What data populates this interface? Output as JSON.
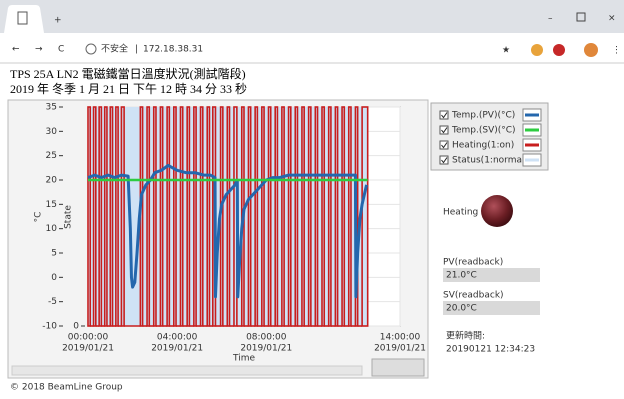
{
  "browser": {
    "security": "不安全",
    "url": "172.18.38.31"
  },
  "header": {
    "title": "TPS 25A LN2 電磁鐵當日溫度狀況(測試階段)",
    "timestamp": "2019 年 冬季 1 月 21 日 下午 12 時 34 分 33 秒"
  },
  "chart_data": {
    "type": "line",
    "xlabel": "Time",
    "ylabel": "°C",
    "y2label": "State",
    "xlim": [
      0,
      14
    ],
    "xticks": [
      {
        "value": 0,
        "label": "00:00:00",
        "date": "2019/01/21"
      },
      {
        "value": 4,
        "label": "04:00:00",
        "date": "2019/01/21"
      },
      {
        "value": 8,
        "label": "08:00:00",
        "date": "2019/01/21"
      },
      {
        "value": 14,
        "label": "14:00:00",
        "date": "2019/01/21"
      }
    ],
    "ylim": [
      -10,
      35
    ],
    "yticks": [
      -10,
      -5,
      0,
      5,
      10,
      15,
      20,
      25,
      30,
      35
    ],
    "y2lim": [
      0,
      1
    ],
    "y2ticks": [
      0
    ],
    "grid": true,
    "legend": "right",
    "series": [
      {
        "name": "Temp.(PV)(°C)",
        "color": "#2467ad",
        "x": [
          0,
          0.3,
          0.6,
          0.9,
          1.2,
          1.5,
          1.8,
          1.9,
          1.95,
          2.0,
          2.1,
          2.2,
          2.3,
          2.4,
          2.6,
          2.8,
          3.0,
          3.3,
          3.6,
          4.0,
          4.4,
          4.8,
          5.2,
          5.5,
          5.7,
          5.72,
          5.8,
          5.9,
          6.0,
          6.2,
          6.4,
          6.6,
          6.7,
          6.72,
          6.8,
          6.9,
          7.0,
          7.2,
          7.4,
          7.6,
          7.8,
          8.0,
          8.3,
          8.6,
          9.0,
          9.4,
          9.8,
          10.2,
          10.6,
          11.0,
          11.4,
          11.8,
          12.0,
          12.02,
          12.1,
          12.2,
          12.3,
          12.4,
          12.5
        ],
        "values": [
          20.5,
          21,
          20.5,
          21,
          20.5,
          21,
          20.8,
          10,
          0,
          -2,
          -1,
          5,
          12,
          17,
          19,
          20,
          21.5,
          22,
          23,
          22,
          21.5,
          21.5,
          21,
          21,
          20.5,
          -4,
          5,
          12,
          15,
          17,
          18,
          19,
          20,
          -4,
          3,
          10,
          14,
          16,
          17,
          18,
          19,
          20,
          20.5,
          20.5,
          21,
          21,
          21,
          21,
          21,
          21,
          21,
          21,
          21,
          -4,
          5,
          12,
          15,
          17,
          19
        ]
      },
      {
        "name": "Temp.(SV)(°C)",
        "color": "#2ecc40",
        "x": [
          0,
          12.55
        ],
        "values": [
          20,
          20
        ]
      },
      {
        "name": "Heating(1:on)",
        "color": "#c81e1e",
        "axis": "y2",
        "x": [
          0,
          0.1,
          0.25,
          0.35,
          0.5,
          0.6,
          0.75,
          0.85,
          1.0,
          1.1,
          1.25,
          1.35,
          1.5,
          1.62,
          2.35,
          2.45,
          2.65,
          2.75,
          2.95,
          3.05,
          3.25,
          3.35,
          3.55,
          3.65,
          3.85,
          3.95,
          4.15,
          4.25,
          4.45,
          4.55,
          4.75,
          4.85,
          5.05,
          5.15,
          5.35,
          5.45,
          5.6,
          5.72,
          5.95,
          6.05,
          6.25,
          6.35,
          6.55,
          6.68,
          6.9,
          7.0,
          7.2,
          7.3,
          7.5,
          7.6,
          7.8,
          7.9,
          8.1,
          8.2,
          8.4,
          8.5,
          8.7,
          8.8,
          9.0,
          9.1,
          9.3,
          9.4,
          9.6,
          9.7,
          9.9,
          10.0,
          10.2,
          10.3,
          10.5,
          10.6,
          10.8,
          10.9,
          11.1,
          11.2,
          11.4,
          11.5,
          11.7,
          11.8,
          12.0,
          12.1,
          12.3,
          12.55
        ],
        "values": [
          1,
          0,
          1,
          0,
          1,
          0,
          1,
          0,
          1,
          0,
          1,
          0,
          1,
          0,
          1,
          0,
          1,
          0,
          1,
          0,
          1,
          0,
          1,
          0,
          1,
          0,
          1,
          0,
          1,
          0,
          1,
          0,
          1,
          0,
          1,
          0,
          1,
          0,
          1,
          0,
          1,
          0,
          1,
          0,
          1,
          0,
          1,
          0,
          1,
          0,
          1,
          0,
          1,
          0,
          1,
          0,
          1,
          0,
          1,
          0,
          1,
          0,
          1,
          0,
          1,
          0,
          1,
          0,
          1,
          0,
          1,
          0,
          1,
          0,
          1,
          0,
          1,
          0,
          1,
          0,
          1,
          0
        ]
      },
      {
        "name": "Status(1:normal)",
        "color": "#cfe2f5",
        "axis": "y2",
        "x": [
          0,
          12.55
        ],
        "values": [
          1,
          1
        ]
      }
    ]
  },
  "panel": {
    "heating_label": "Heating",
    "pv_label": "PV(readback)",
    "pv_value": "21.0°C",
    "sv_label": "SV(readback)",
    "sv_value": "20.0°C",
    "updated_label": "更新時間:",
    "updated_value": "20190121 12:34:23"
  },
  "footer": "© 2018 BeamLine Group"
}
